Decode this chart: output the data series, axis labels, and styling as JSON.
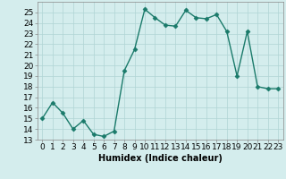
{
  "x": [
    0,
    1,
    2,
    3,
    4,
    5,
    6,
    7,
    8,
    9,
    10,
    11,
    12,
    13,
    14,
    15,
    16,
    17,
    18,
    19,
    20,
    21,
    22,
    23
  ],
  "y": [
    15,
    16.5,
    15.5,
    14.0,
    14.8,
    13.5,
    13.3,
    13.8,
    19.5,
    21.5,
    25.3,
    24.5,
    23.8,
    23.7,
    25.2,
    24.5,
    24.4,
    24.8,
    23.2,
    19.0,
    23.2,
    18.0,
    17.8,
    17.8
  ],
  "line_color": "#1a7a6a",
  "marker": "D",
  "marker_size": 2.5,
  "bg_color": "#d4eded",
  "grid_color": "#b0d4d4",
  "xlabel": "Humidex (Indice chaleur)",
  "ylim": [
    13,
    26
  ],
  "xlim": [
    -0.5,
    23.5
  ],
  "yticks": [
    13,
    14,
    15,
    16,
    17,
    18,
    19,
    20,
    21,
    22,
    23,
    24,
    25
  ],
  "xticks": [
    0,
    1,
    2,
    3,
    4,
    5,
    6,
    7,
    8,
    9,
    10,
    11,
    12,
    13,
    14,
    15,
    16,
    17,
    18,
    19,
    20,
    21,
    22,
    23
  ],
  "xlabel_fontsize": 7,
  "tick_fontsize": 6.5,
  "line_width": 1.0
}
